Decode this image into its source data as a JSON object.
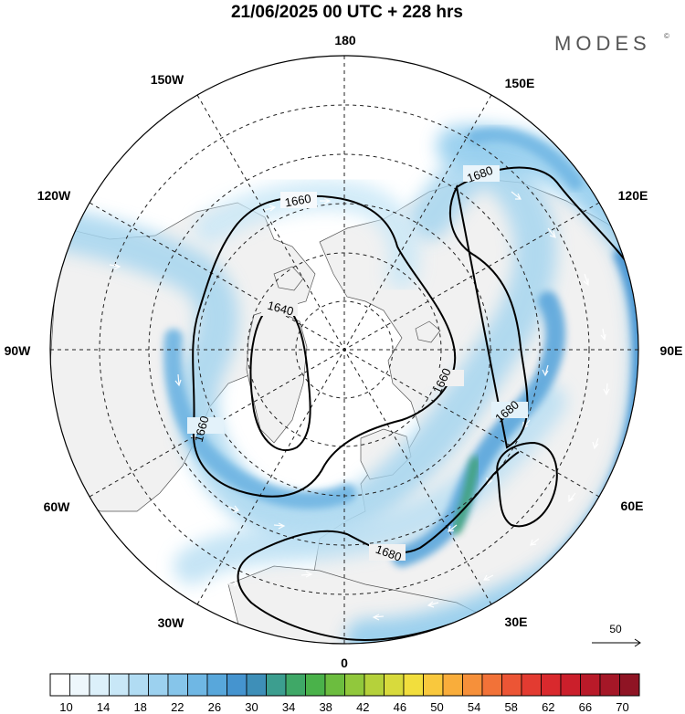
{
  "title": "21/06/2025  00 UTC  + 228 hrs",
  "logo": {
    "text": "MODES",
    "mark": "©"
  },
  "longitude_labels": {
    "top": "180",
    "upper_right": "150E",
    "right_upper": "120E",
    "right": "90E",
    "lower_right_upper": "60E",
    "lower_right": "30E",
    "bottom": "0",
    "lower_left": "30W",
    "lower_left_upper": "60W",
    "left": "90W",
    "left_upper": "120W",
    "upper_left": "150W"
  },
  "contour_labels": [
    "1640",
    "1660",
    "1660",
    "1660",
    "1680",
    "1680",
    "1680"
  ],
  "reference_vector": {
    "value": "50",
    "icon": "arrow-right-icon"
  },
  "colorbar": {
    "labels": [
      "10",
      "14",
      "18",
      "22",
      "26",
      "30",
      "34",
      "38",
      "42",
      "46",
      "50",
      "54",
      "58",
      "62",
      "66",
      "70"
    ],
    "colors": [
      "#ffffff",
      "#eef7fc",
      "#dcf0fa",
      "#c8e7f7",
      "#b1dcf3",
      "#9cd1ef",
      "#86c5ea",
      "#6fb7e4",
      "#58a7db",
      "#4594cf",
      "#3e8fb8",
      "#3c9e8f",
      "#3fa867",
      "#4ab24a",
      "#6cbd3f",
      "#91c83c",
      "#b5d13b",
      "#d8da3c",
      "#f2de3d",
      "#f9c83d",
      "#f9ad3b",
      "#f6903a",
      "#f27238",
      "#ec5535",
      "#e33b31",
      "#d9292d",
      "#cb1f2b",
      "#b91a29",
      "#a51727",
      "#8f1424"
    ]
  },
  "colors": {
    "land": "#f1f1f1",
    "ocean": "#ffffff",
    "jet_light": "#a6d5ef",
    "jet_mid": "#6db4e2",
    "jet_core": "#3d8fd0",
    "jet_max": "#3aa16a"
  }
}
